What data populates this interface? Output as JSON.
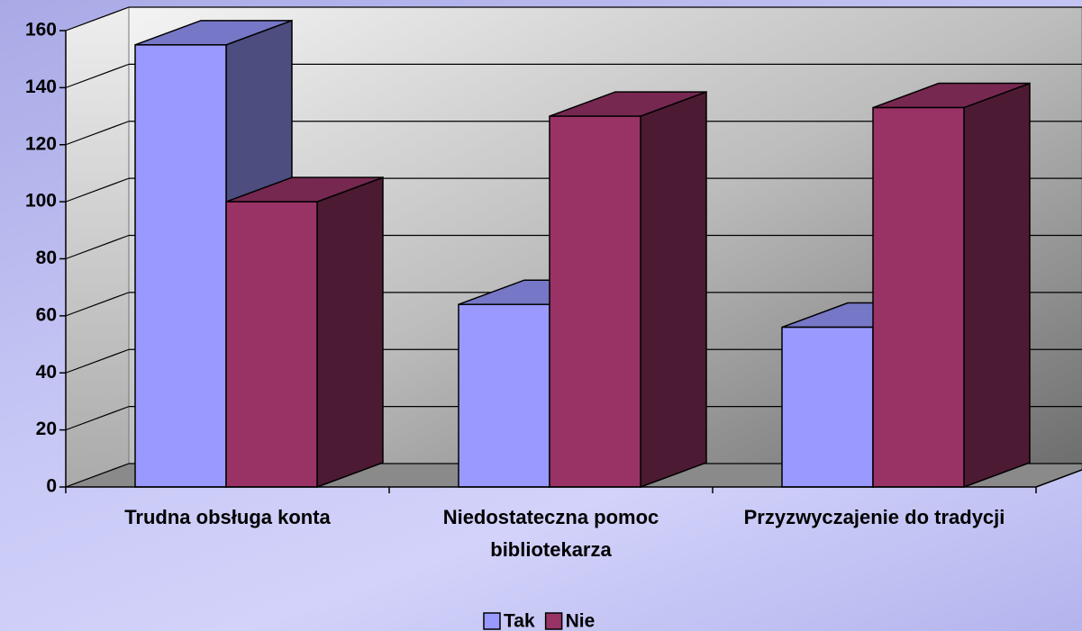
{
  "chart_data": {
    "type": "bar3d",
    "categories": [
      "Trudna obsługa konta",
      "Niedostateczna pomoc bibliotekarza",
      "Przyzwyczajenie do tradycji"
    ],
    "series": [
      {
        "name": "Tak",
        "color": "#9999ff",
        "values": [
          155,
          64,
          56
        ]
      },
      {
        "name": "Nie",
        "color": "#993366",
        "values": [
          100,
          130,
          133
        ]
      }
    ],
    "ylim": [
      0,
      160
    ],
    "yticks": [
      0,
      20,
      40,
      60,
      80,
      100,
      120,
      140,
      160
    ],
    "grid": true,
    "legend": "bottom"
  }
}
